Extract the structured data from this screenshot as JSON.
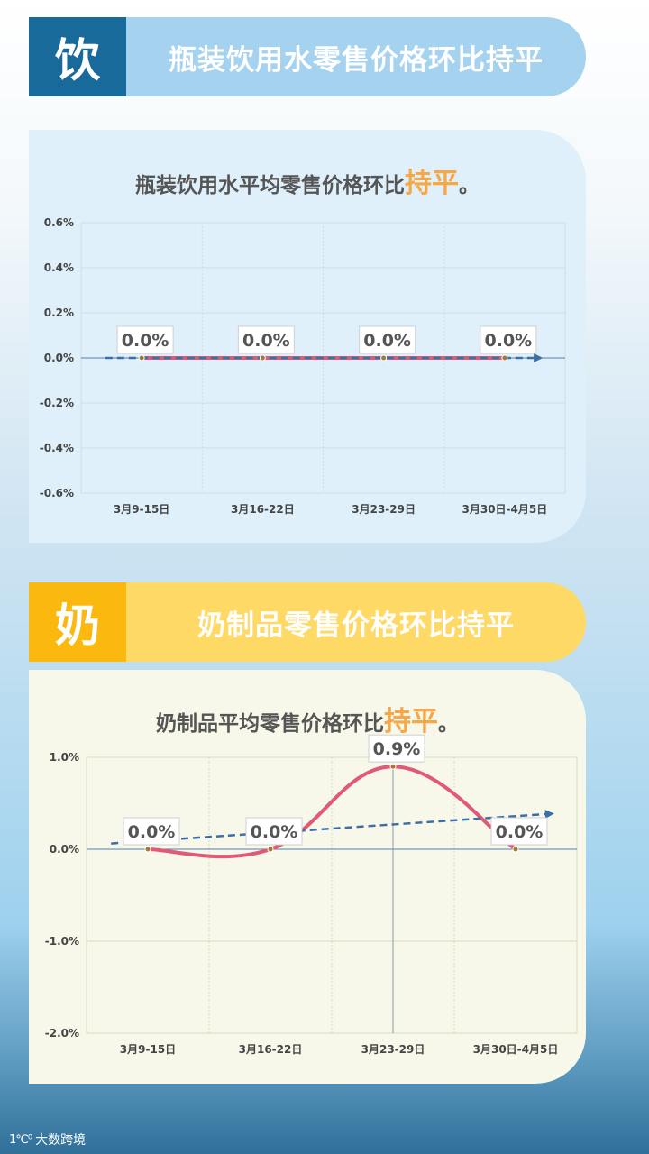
{
  "section1": {
    "tag": "饮",
    "banner_title": "瓶装饮用水零售价格环比持平",
    "chart_title_prefix": "瓶装饮用水平均零售价格环比",
    "chart_title_highlight": "持平",
    "chart_title_suffix": "。"
  },
  "section2": {
    "tag": "奶",
    "banner_title": "奶制品零售价格环比持平",
    "chart_title_prefix": "奶制品平均零售价格环比",
    "chart_title_highlight": "持平",
    "chart_title_suffix": "。"
  },
  "footer": {
    "logo": "大数跨境",
    "logo_mark": "1℃⁰"
  },
  "chart_data": [
    {
      "type": "line",
      "categories": [
        "3月9-15日",
        "3月16-22日",
        "3月23-29日",
        "3月30日-4月5日"
      ],
      "series": [
        {
          "values": [
            0.0,
            0.0,
            0.0,
            0.0
          ]
        }
      ],
      "data_labels": [
        "0.0%",
        "0.0%",
        "0.0%",
        "0.0%"
      ],
      "y_ticks": [
        "0.6%",
        "0.4%",
        "0.2%",
        "0.0%",
        "-0.2%",
        "-0.4%",
        "-0.6%"
      ],
      "ylim": [
        -0.6,
        0.6
      ],
      "trendline": true,
      "grid": true,
      "colors": {
        "line": "#e05a78",
        "trend": "#3b6fa6",
        "grid": "#d3dbe2",
        "axis": "#4f7fb3"
      }
    },
    {
      "type": "line",
      "categories": [
        "3月9-15日",
        "3月16-22日",
        "3月23-29日",
        "3月30日-4月5日"
      ],
      "series": [
        {
          "values": [
            0.0,
            0.0,
            0.9,
            0.0
          ]
        }
      ],
      "data_labels": [
        "0.0%",
        "0.0%",
        "0.9%",
        "0.0%"
      ],
      "y_ticks": [
        "1.0%",
        "0.0%",
        "-1.0%",
        "-2.0%"
      ],
      "ylim": [
        -2.0,
        1.0
      ],
      "trendline": true,
      "grid": true,
      "colors": {
        "line": "#e05a78",
        "trend": "#3b6fa6",
        "grid": "#d8dcc8",
        "axis": "#4f7fb3"
      }
    }
  ]
}
